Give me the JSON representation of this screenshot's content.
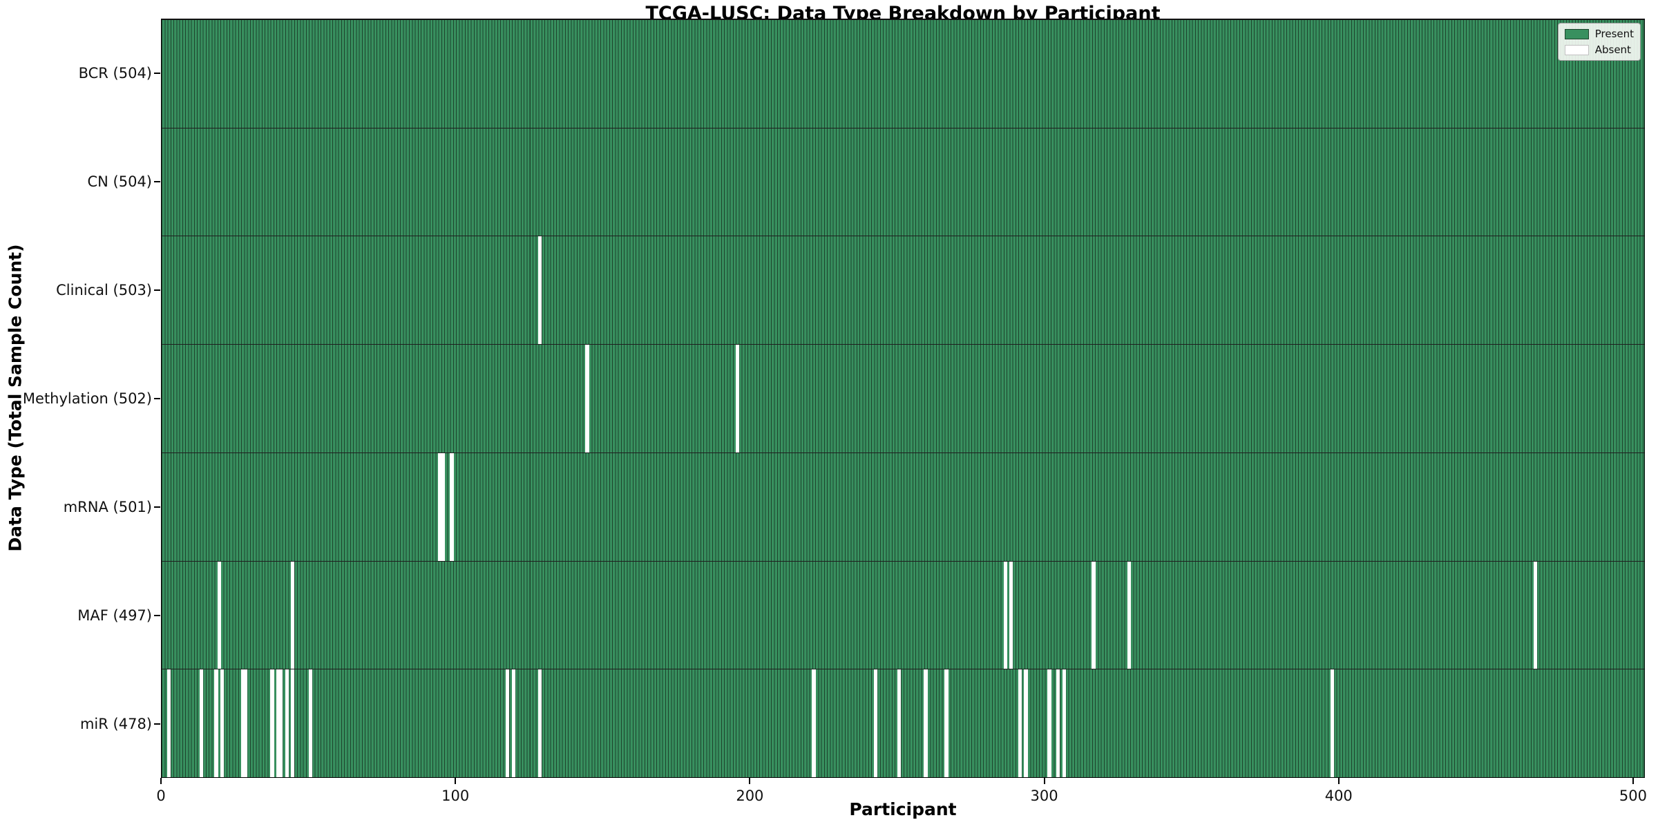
{
  "legend": {
    "present_label": "Present",
    "absent_label": "Absent"
  },
  "colors": {
    "present": "#38905f",
    "absent": "#ffffff",
    "bar_edge": "#1d422c",
    "row_divider": "#1e1e1e",
    "plot_border": "#000000",
    "legend_bg": "#fdfdfb",
    "legend_border": "#9a9a9a"
  },
  "chart_data": {
    "type": "heatmap",
    "title": "TCGA-LUSC: Data Type Breakdown by Participant",
    "xlabel": "Participant",
    "ylabel": "Data Type (Total Sample Count)",
    "legend_entries": [
      "Present",
      "Absent"
    ],
    "legend_position": "upper right",
    "grid": false,
    "n_participants": 504,
    "x_range": [
      0,
      504
    ],
    "x_ticks": [
      0,
      100,
      200,
      300,
      400,
      500
    ],
    "rows": [
      {
        "label": "BCR (504)",
        "data_type": "BCR",
        "present_count": 504,
        "absent_participants": []
      },
      {
        "label": "CN (504)",
        "data_type": "CN",
        "present_count": 504,
        "absent_participants": []
      },
      {
        "label": "Clinical (503)",
        "data_type": "Clinical",
        "present_count": 503,
        "absent_participants": [
          129
        ]
      },
      {
        "label": "Methylation (502)",
        "data_type": "Methylation",
        "present_count": 502,
        "absent_participants": [
          145,
          196
        ]
      },
      {
        "label": "mRNA (501)",
        "data_type": "mRNA",
        "present_count": 501,
        "absent_participants": [
          95,
          96,
          99
        ]
      },
      {
        "label": "MAF (497)",
        "data_type": "MAF",
        "present_count": 497,
        "absent_participants": [
          20,
          45,
          287,
          289,
          317,
          329,
          467
        ]
      },
      {
        "label": "miR (478)",
        "data_type": "miR",
        "present_count": 478,
        "absent_participants": [
          3,
          14,
          19,
          21,
          28,
          29,
          38,
          40,
          41,
          43,
          45,
          51,
          118,
          120,
          129,
          222,
          243,
          251,
          260,
          267,
          292,
          294,
          302,
          305,
          307,
          398
        ]
      }
    ]
  }
}
